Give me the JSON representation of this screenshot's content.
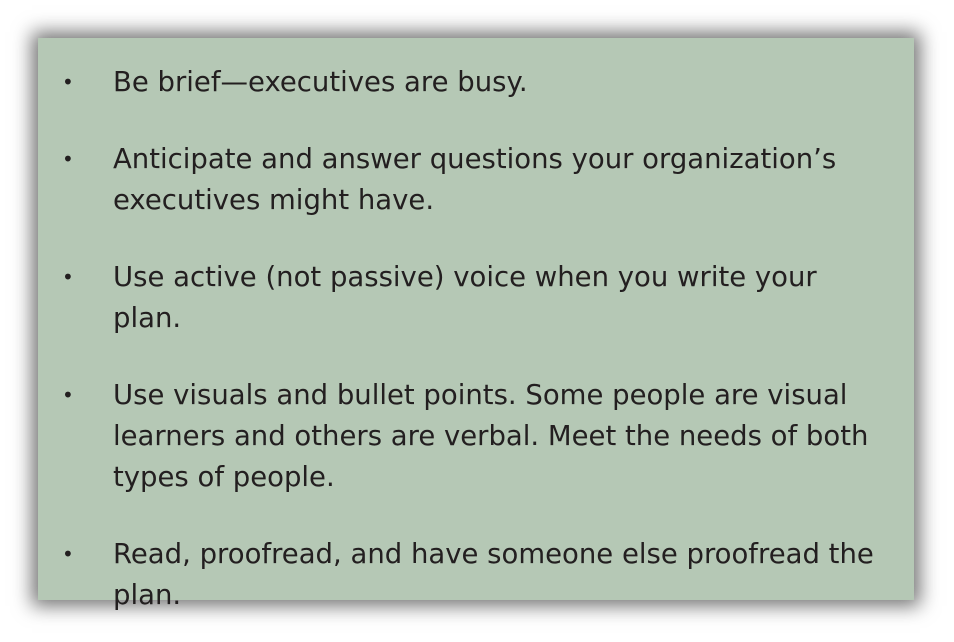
{
  "bullets": [
    "Be brief—executives are busy.",
    "Anticipate and answer questions your organization’s executives might have.",
    "Use active (not passive) voice when you write your plan.",
    "Use visuals and bullet points. Some people are visual learners and others are verbal. Meet the needs of both types of people.",
    "Read, proofread, and have someone else proofread the plan."
  ],
  "bullet_symbol": "•",
  "colors": {
    "panel_background": "#b5c8b5",
    "text": "#231f20"
  }
}
